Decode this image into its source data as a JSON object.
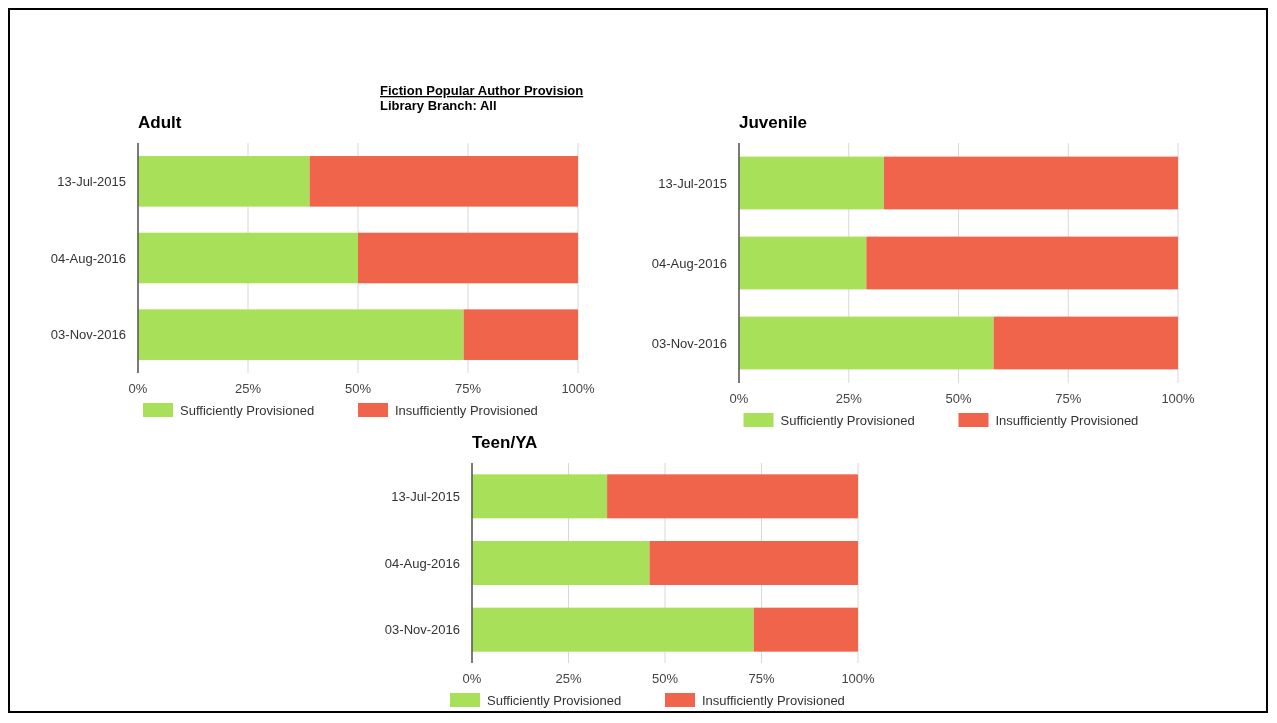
{
  "chart_data": [
    {
      "type": "bar",
      "orientation": "horizontal",
      "stacked": true,
      "title": "Adult",
      "annotations": [
        "Fiction Popular Author Provision",
        "Library Branch: All"
      ],
      "categories": [
        "13-Jul-2015",
        "04-Aug-2016",
        "03-Nov-2016"
      ],
      "series": [
        {
          "name": "Sufficiently Provisioned",
          "color": "#a8e05a",
          "values": [
            39,
            50,
            74
          ]
        },
        {
          "name": "Insufficiently Provisioned",
          "color": "#f0644b",
          "values": [
            61,
            50,
            26
          ]
        }
      ],
      "xlim": [
        0,
        100
      ],
      "xticks": [
        {
          "value": 0,
          "label": "0%"
        },
        {
          "value": 25,
          "label": "25%"
        },
        {
          "value": 50,
          "label": "50%"
        },
        {
          "value": 75,
          "label": "75%"
        },
        {
          "value": 100,
          "label": "100%"
        }
      ],
      "grid": "x",
      "legend": "bottom"
    },
    {
      "type": "bar",
      "orientation": "horizontal",
      "stacked": true,
      "title": "Juvenile",
      "categories": [
        "13-Jul-2015",
        "04-Aug-2016",
        "03-Nov-2016"
      ],
      "series": [
        {
          "name": "Sufficiently Provisioned",
          "color": "#a8e05a",
          "values": [
            33,
            29,
            58
          ]
        },
        {
          "name": "Insufficiently Provisioned",
          "color": "#f0644b",
          "values": [
            67,
            71,
            42
          ]
        }
      ],
      "xlim": [
        0,
        100
      ],
      "xticks": [
        {
          "value": 0,
          "label": "0%"
        },
        {
          "value": 25,
          "label": "25%"
        },
        {
          "value": 50,
          "label": "50%"
        },
        {
          "value": 75,
          "label": "75%"
        },
        {
          "value": 100,
          "label": "100%"
        }
      ],
      "grid": "x",
      "legend": "bottom"
    },
    {
      "type": "bar",
      "orientation": "horizontal",
      "stacked": true,
      "title": "Teen/YA",
      "categories": [
        "13-Jul-2015",
        "04-Aug-2016",
        "03-Nov-2016"
      ],
      "series": [
        {
          "name": "Sufficiently Provisioned",
          "color": "#a8e05a",
          "values": [
            35,
            46,
            73
          ]
        },
        {
          "name": "Insufficiently Provisioned",
          "color": "#f0644b",
          "values": [
            65,
            54,
            27
          ]
        }
      ],
      "xlim": [
        0,
        100
      ],
      "xticks": [
        {
          "value": 0,
          "label": "0%"
        },
        {
          "value": 25,
          "label": "25%"
        },
        {
          "value": 50,
          "label": "50%"
        },
        {
          "value": 75,
          "label": "75%"
        },
        {
          "value": 100,
          "label": "100%"
        }
      ],
      "grid": "x",
      "legend": "bottom"
    }
  ]
}
